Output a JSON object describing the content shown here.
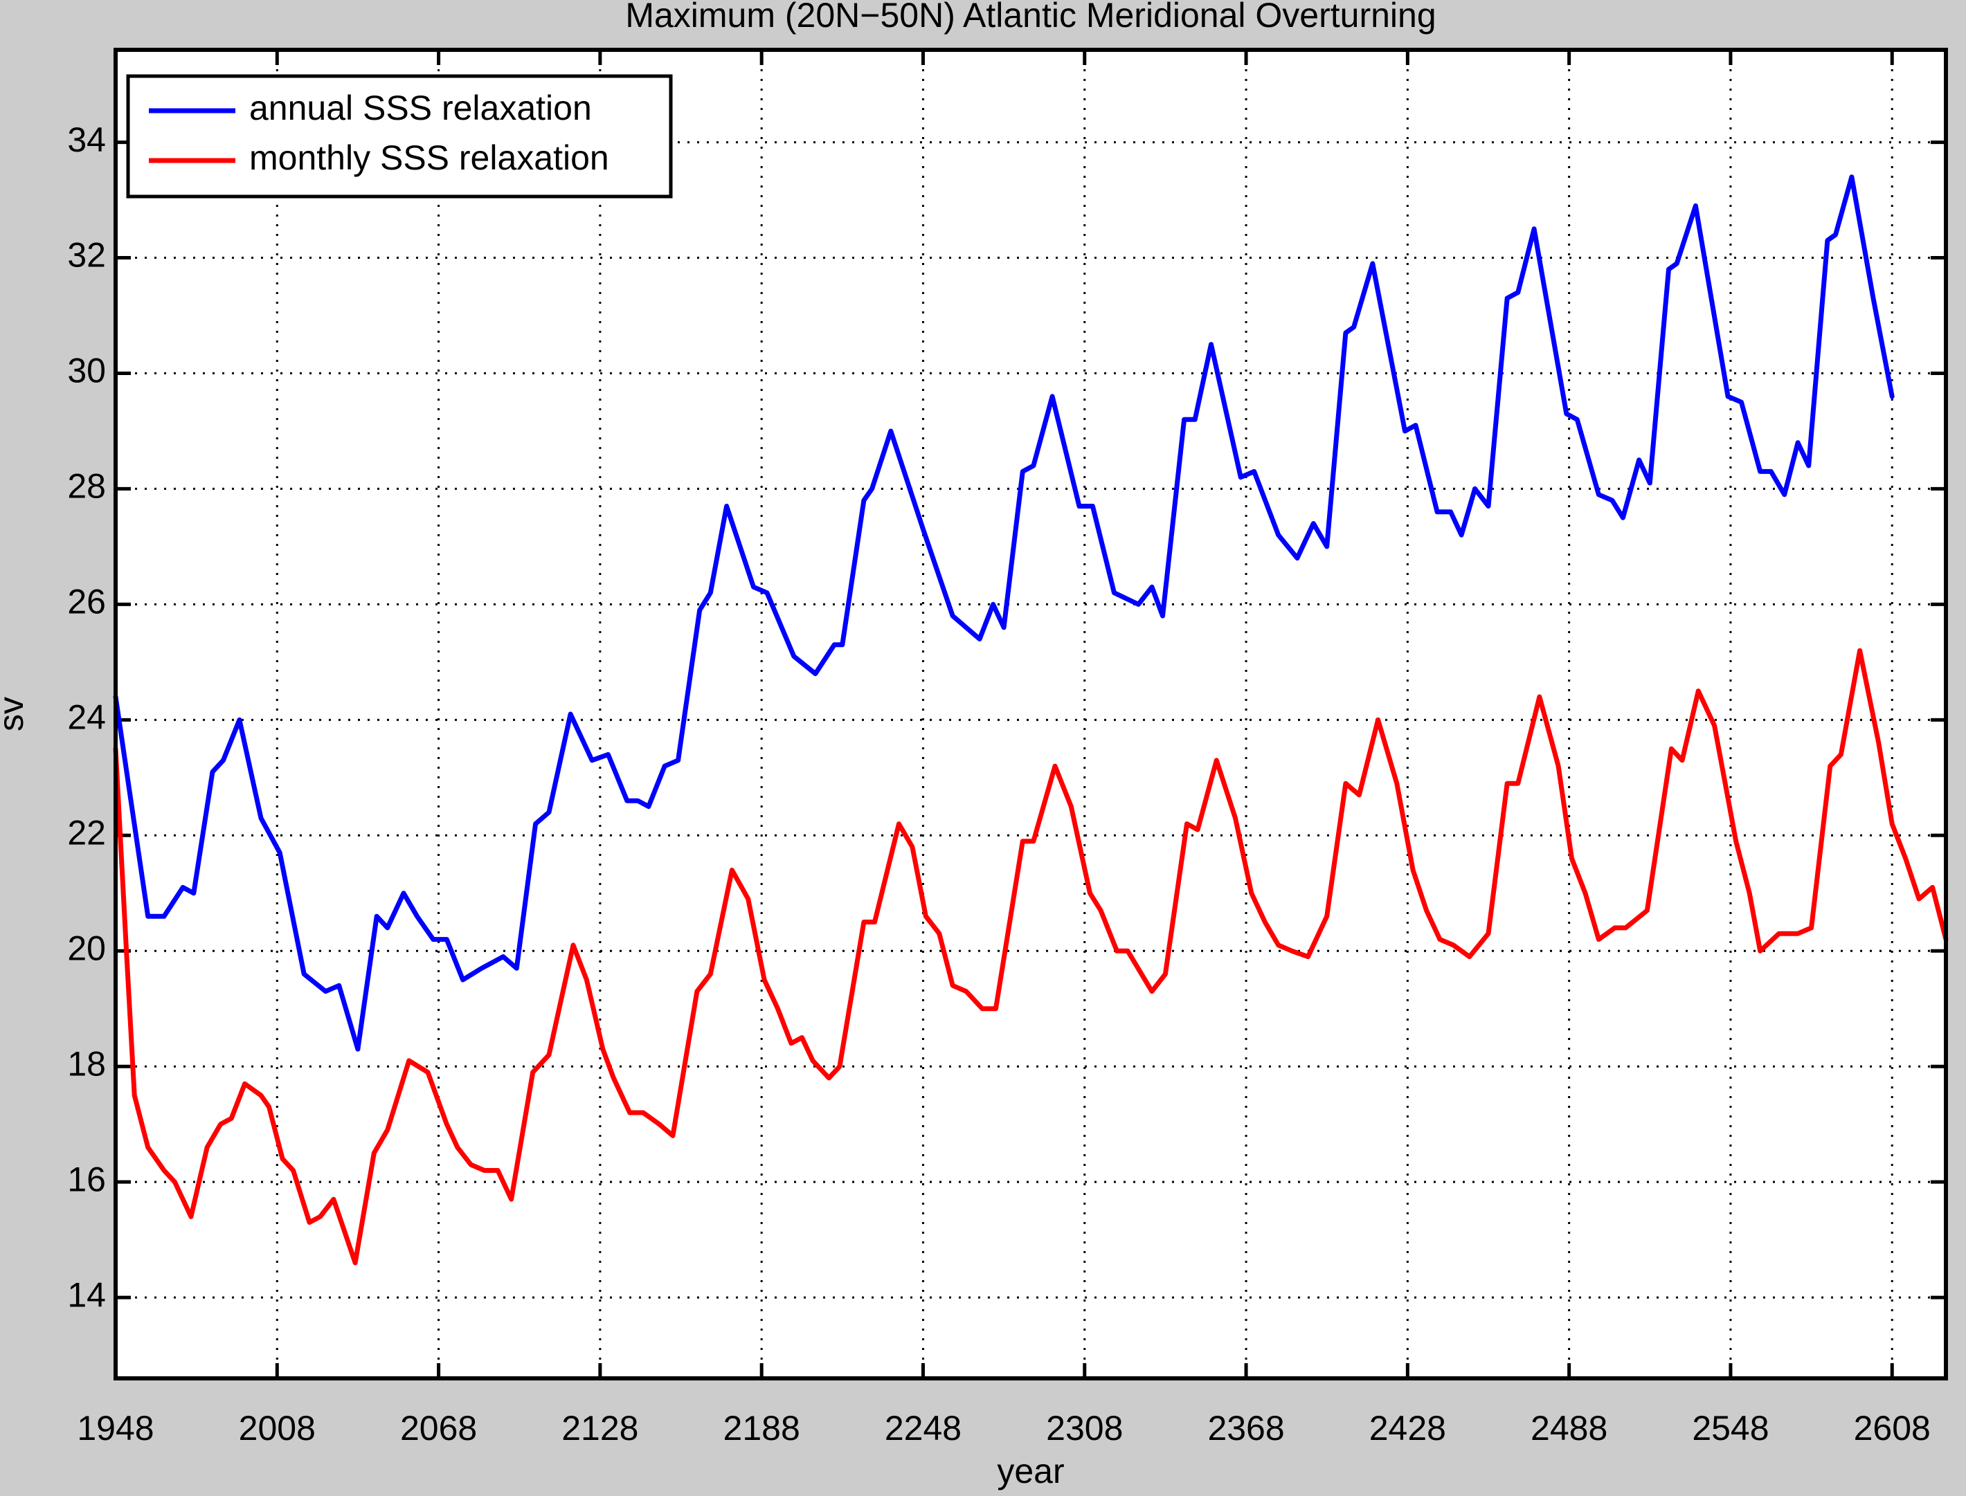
{
  "chart_data": {
    "type": "line",
    "title": "Maximum (20N−50N) Atlantic Meridional Overturning",
    "xlabel": "year",
    "ylabel": "sv",
    "xlim": [
      1948,
      2628
    ],
    "ylim": [
      12.6,
      35.6
    ],
    "xticks": [
      1948,
      2008,
      2068,
      2128,
      2188,
      2248,
      2308,
      2368,
      2428,
      2488,
      2548,
      2608
    ],
    "yticks": [
      14,
      16,
      18,
      20,
      22,
      24,
      26,
      28,
      30,
      32,
      34
    ],
    "grid": true,
    "legend": "upper left",
    "series": [
      {
        "name": "annual SSS relaxation",
        "color": "#0000ff",
        "x": [
          1948,
          1960,
          1966,
          1973,
          1977,
          1984,
          1988,
          1994,
          2002,
          2009,
          2018,
          2026,
          2031,
          2038,
          2045,
          2049,
          2055,
          2060,
          2066,
          2071,
          2077,
          2084,
          2092,
          2097,
          2104,
          2109,
          2117,
          2125,
          2131,
          2138,
          2142,
          2146,
          2152,
          2157,
          2165,
          2169,
          2175,
          2185,
          2190,
          2200,
          2208,
          2215,
          2218,
          2226,
          2229,
          2236,
          2248,
          2259,
          2269,
          2274,
          2278,
          2285,
          2289,
          2296,
          2306,
          2311,
          2319,
          2328,
          2333,
          2337,
          2345,
          2349,
          2355,
          2366,
          2371,
          2380,
          2387,
          2393,
          2398,
          2405,
          2408,
          2415,
          2427,
          2431,
          2439,
          2444,
          2448,
          2453,
          2458,
          2465,
          2469,
          2475,
          2487,
          2491,
          2499,
          2504,
          2508,
          2514,
          2518,
          2525,
          2528,
          2535,
          2547,
          2552,
          2559,
          2563,
          2568,
          2573,
          2577,
          2584,
          2587,
          2593,
          2601,
          2608
        ],
        "values": [
          24.4,
          20.6,
          20.6,
          21.1,
          21.0,
          23.1,
          23.3,
          24.0,
          22.3,
          21.7,
          19.6,
          19.3,
          19.4,
          18.3,
          20.6,
          20.4,
          21.0,
          20.6,
          20.2,
          20.2,
          19.5,
          19.7,
          19.9,
          19.7,
          22.2,
          22.4,
          24.1,
          23.3,
          23.4,
          22.6,
          22.6,
          22.5,
          23.2,
          23.3,
          25.9,
          26.2,
          27.7,
          26.3,
          26.2,
          25.1,
          24.8,
          25.3,
          25.3,
          27.8,
          28.0,
          29.0,
          27.3,
          25.8,
          25.4,
          26.0,
          25.6,
          28.3,
          28.4,
          29.6,
          27.7,
          27.7,
          26.2,
          26.0,
          26.3,
          25.8,
          29.2,
          29.2,
          30.5,
          28.2,
          28.3,
          27.2,
          26.8,
          27.4,
          27.0,
          30.7,
          30.8,
          31.9,
          29.0,
          29.1,
          27.6,
          27.6,
          27.2,
          28.0,
          27.7,
          31.3,
          31.4,
          32.5,
          29.3,
          29.2,
          27.9,
          27.8,
          27.5,
          28.5,
          28.1,
          31.8,
          31.9,
          32.9,
          29.6,
          29.5,
          28.3,
          28.3,
          27.9,
          28.8,
          28.4,
          32.3,
          32.4,
          33.4,
          31.3,
          29.6
        ]
      },
      {
        "name": "monthly SSS relaxation",
        "color": "#ff0000",
        "x": [
          1948,
          1952,
          1955,
          1960,
          1966,
          1970,
          1976,
          1982,
          1987,
          1991,
          1996,
          2002,
          2005,
          2010,
          2014,
          2020,
          2024,
          2029,
          2037,
          2044,
          2049,
          2057,
          2064,
          2071,
          2075,
          2080,
          2085,
          2090,
          2095,
          2103,
          2109,
          2118,
          2123,
          2129,
          2133,
          2139,
          2144,
          2150,
          2155,
          2164,
          2169,
          2177,
          2183,
          2189,
          2194,
          2199,
          2203,
          2207,
          2213,
          2217,
          2226,
          2230,
          2239,
          2244,
          2249,
          2254,
          2259,
          2264,
          2270,
          2275,
          2285,
          2289,
          2297,
          2303,
          2310,
          2314,
          2320,
          2324,
          2333,
          2338,
          2346,
          2350,
          2357,
          2364,
          2370,
          2375,
          2380,
          2385,
          2391,
          2398,
          2405,
          2410,
          2417,
          2424,
          2430,
          2435,
          2440,
          2445,
          2451,
          2458,
          2465,
          2469,
          2477,
          2484,
          2489,
          2494,
          2499,
          2505,
          2509,
          2517,
          2526,
          2530,
          2536,
          2542,
          2550,
          2555,
          2559,
          2566,
          2573,
          2578,
          2585,
          2589,
          2596,
          2603,
          2608,
          2613,
          2618,
          2623,
          2628
        ],
        "values": [
          23.5,
          20.0,
          17.5,
          16.6,
          16.2,
          16.0,
          15.4,
          16.6,
          17.0,
          17.1,
          17.7,
          17.5,
          17.3,
          16.4,
          16.2,
          15.3,
          15.4,
          15.7,
          14.6,
          16.5,
          16.9,
          18.1,
          17.9,
          17.0,
          16.6,
          16.3,
          16.2,
          16.2,
          15.7,
          17.9,
          18.2,
          20.1,
          19.5,
          18.3,
          17.8,
          17.2,
          17.2,
          17.0,
          16.8,
          19.3,
          19.6,
          21.4,
          20.9,
          19.5,
          19.0,
          18.4,
          18.5,
          18.1,
          17.8,
          18.0,
          20.5,
          20.5,
          22.2,
          21.8,
          20.6,
          20.3,
          19.4,
          19.3,
          19.0,
          19.0,
          21.9,
          21.9,
          23.2,
          22.5,
          21.0,
          20.7,
          20.0,
          20.0,
          19.3,
          19.6,
          22.2,
          22.1,
          23.3,
          22.3,
          21.0,
          20.5,
          20.1,
          20.0,
          19.9,
          20.6,
          22.9,
          22.7,
          24.0,
          22.9,
          21.4,
          20.7,
          20.2,
          20.1,
          19.9,
          20.3,
          22.9,
          22.9,
          24.4,
          23.2,
          21.6,
          21.0,
          20.2,
          20.4,
          20.4,
          20.7,
          23.5,
          23.3,
          24.5,
          23.9,
          21.9,
          21.0,
          20.0,
          20.3,
          20.3,
          20.4,
          23.2,
          23.4,
          25.2,
          23.6,
          22.2,
          21.6,
          20.9,
          21.1,
          20.2
        ]
      }
    ]
  }
}
